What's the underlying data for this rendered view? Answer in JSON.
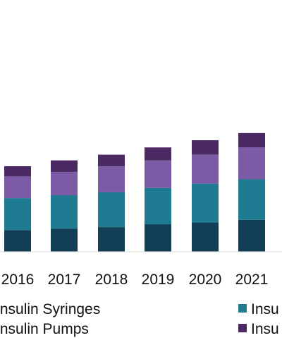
{
  "chart_data": {
    "type": "bar",
    "stacked": true,
    "categories": [
      "2016",
      "2017",
      "2018",
      "2019",
      "2020",
      "2021"
    ],
    "series": [
      {
        "name": "Insulin Syringes",
        "color": "#123f55",
        "values": [
          1.5,
          1.6,
          1.7,
          1.9,
          2.0,
          2.2
        ]
      },
      {
        "name": "Insu",
        "color": "#1e7b91",
        "values": [
          2.2,
          2.3,
          2.4,
          2.5,
          2.7,
          2.8
        ]
      },
      {
        "name": "Insulin Pumps",
        "color": "#7b5ba6",
        "values": [
          1.5,
          1.6,
          1.8,
          1.9,
          2.0,
          2.2
        ]
      },
      {
        "name": "Insu",
        "color": "#4b2a63",
        "values": [
          0.7,
          0.8,
          0.8,
          0.9,
          1.0,
          1.0
        ]
      }
    ],
    "legend": [
      {
        "label": "Insulin Syringes",
        "color": "#123f55"
      },
      {
        "label": "Insu",
        "color": "#1e7b91"
      },
      {
        "label": "Insulin Pumps",
        "color": "#7b5ba6"
      },
      {
        "label": "Insu",
        "color": "#4b2a63"
      }
    ],
    "grid": false,
    "legend_position": "bottom"
  }
}
